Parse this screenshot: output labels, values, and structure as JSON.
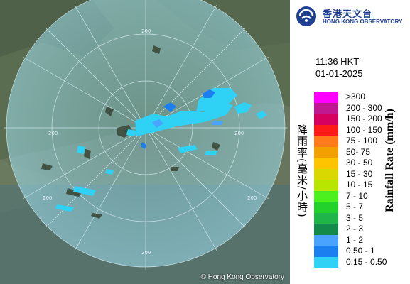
{
  "header": {
    "org_name_zh": "香港天文台",
    "org_name_en": "HONG KONG OBSERVATORY"
  },
  "timestamp": {
    "time": "11:36 HKT",
    "date": "01-01-2025"
  },
  "legend": {
    "title_zh": "降雨率(毫米/小時)",
    "title_en": "Rainfall Rate (mm/h)",
    "scale": [
      {
        "label": ">300",
        "color": "#ff00ff"
      },
      {
        "label": "200 - 300",
        "color": "#c01890"
      },
      {
        "label": "150 - 200",
        "color": "#d50060"
      },
      {
        "label": "100 - 150",
        "color": "#ff1a1a"
      },
      {
        "label": "75 - 100",
        "color": "#ff7a1a"
      },
      {
        "label": "50- 75",
        "color": "#f2a000"
      },
      {
        "label": "30 - 50",
        "color": "#ffc400"
      },
      {
        "label": "15 - 30",
        "color": "#d9d800"
      },
      {
        "label": "10 - 15",
        "color": "#b8e600"
      },
      {
        "label": "7 - 10",
        "color": "#4cf01f"
      },
      {
        "label": "5 - 7",
        "color": "#22d12c"
      },
      {
        "label": "3 - 5",
        "color": "#1fb548"
      },
      {
        "label": "2 - 3",
        "color": "#138a4a"
      },
      {
        "label": "1 - 2",
        "color": "#4aa3ff"
      },
      {
        "label": "0.50 - 1",
        "color": "#1c7ff0"
      },
      {
        "label": "0.15 - 0.50",
        "color": "#2fd1f5"
      }
    ]
  },
  "map": {
    "copyright": "© Hong Kong Observatory",
    "range_rings": [
      "200",
      "200",
      "200",
      "200",
      "200",
      "200"
    ]
  }
}
